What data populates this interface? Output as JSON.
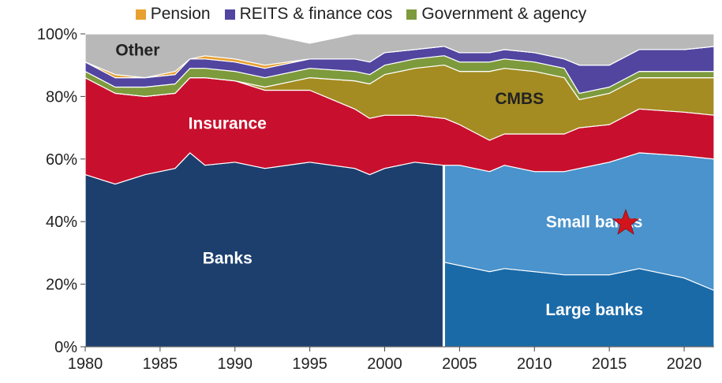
{
  "chart_data": {
    "type": "area",
    "stacked": true,
    "normalized_percent": true,
    "x": [
      1980,
      1982,
      1984,
      1986,
      1987,
      1988,
      1990,
      1992,
      1995,
      1998,
      1999,
      2000,
      2002,
      2003.9,
      2004,
      2005,
      2007,
      2008,
      2010,
      2012,
      2013,
      2015,
      2017,
      2020,
      2022
    ],
    "ylim": [
      0,
      100
    ],
    "xlim": [
      1980,
      2022
    ],
    "xticks": [
      "1980",
      "1985",
      "1990",
      "1995",
      "2000",
      "2005",
      "2010",
      "2015",
      "2020"
    ],
    "yticks": [
      "0%",
      "20%",
      "40%",
      "60%",
      "80%",
      "100%"
    ],
    "series": [
      {
        "name": "Banks",
        "color": "#1c3f6e",
        "values": [
          55,
          52,
          55,
          57,
          62,
          58,
          59,
          57,
          59,
          57,
          55,
          57,
          59,
          58,
          null,
          null,
          null,
          null,
          null,
          null,
          null,
          null,
          null,
          null,
          null
        ]
      },
      {
        "name": "Large banks",
        "color": "#1a6aa8",
        "values": [
          null,
          null,
          null,
          null,
          null,
          null,
          null,
          null,
          null,
          null,
          null,
          null,
          null,
          null,
          27,
          26,
          24,
          25,
          24,
          23,
          23,
          23,
          25,
          22,
          18
        ]
      },
      {
        "name": "Small banks",
        "color": "#4a93cc",
        "values": [
          null,
          null,
          null,
          null,
          null,
          null,
          null,
          null,
          null,
          null,
          null,
          null,
          null,
          null,
          31,
          32,
          32,
          33,
          32,
          33,
          34,
          36,
          37,
          39,
          42
        ]
      },
      {
        "name": "Insurance",
        "color": "#c8102e",
        "values": [
          31,
          29,
          25,
          24,
          24,
          28,
          26,
          25,
          23,
          19,
          18,
          17,
          15,
          15,
          15,
          13,
          10,
          10,
          12,
          12,
          13,
          12,
          14,
          14,
          14
        ]
      },
      {
        "name": "CMBS",
        "color": "#a48c22",
        "values": [
          0,
          0,
          0,
          0,
          0,
          0,
          0,
          1,
          4,
          9,
          11,
          13,
          15,
          17,
          17,
          17,
          22,
          21,
          20,
          18,
          9,
          10,
          10,
          11,
          12
        ]
      },
      {
        "name": "Government & agency",
        "color": "#7d9a3c",
        "values": [
          2,
          2,
          3,
          3,
          3,
          3,
          3,
          3,
          3,
          3,
          3,
          3,
          3,
          3,
          3,
          3,
          3,
          3,
          3,
          3,
          2,
          2,
          2,
          2,
          2
        ]
      },
      {
        "name": "REITS & finance cos",
        "color": "#5145a0",
        "values": [
          3,
          3,
          3,
          3,
          3,
          3,
          3,
          3,
          3,
          4,
          4,
          4,
          3,
          3,
          3,
          3,
          3,
          3,
          3,
          3,
          9,
          7,
          7,
          7,
          8
        ]
      },
      {
        "name": "Pension",
        "color": "#e8a030",
        "values": [
          0,
          1,
          0,
          1,
          0,
          1,
          1,
          1,
          0,
          0,
          0,
          0,
          0,
          0,
          0,
          0,
          0,
          0,
          0,
          0,
          0,
          0,
          0,
          0,
          0
        ]
      },
      {
        "name": "Other",
        "color": "#b8b8b8",
        "values": [
          9,
          13,
          14,
          12,
          8,
          7,
          8,
          10,
          5,
          8,
          9,
          6,
          5,
          4,
          4,
          6,
          6,
          5,
          6,
          8,
          10,
          10,
          5,
          5,
          4
        ]
      }
    ],
    "legend": {
      "position": "top",
      "entries": [
        {
          "label": "Pension",
          "color": "#e8a030"
        },
        {
          "label": "REITS & finance cos",
          "color": "#5145a0"
        },
        {
          "label": "Government & agency",
          "color": "#7d9a3c"
        }
      ]
    },
    "annotations": [
      {
        "text": "Other",
        "x": 1983.5,
        "y": 94.5,
        "color": "#222222"
      },
      {
        "text": "Insurance",
        "x": 1989.5,
        "y": 71,
        "color": "#ffffff"
      },
      {
        "text": "CMBS",
        "x": 2009,
        "y": 79,
        "color": "#222222"
      },
      {
        "text": "Banks",
        "x": 1989.5,
        "y": 28,
        "color": "#ffffff"
      },
      {
        "text": "Small banks",
        "x": 2014,
        "y": 39.5,
        "color": "#ffffff"
      },
      {
        "text": "Large banks",
        "x": 2014,
        "y": 11.5,
        "color": "#ffffff"
      }
    ],
    "marker": {
      "shape": "star",
      "color": "#d2141c",
      "x": 2016.1,
      "y": 39.5
    }
  }
}
